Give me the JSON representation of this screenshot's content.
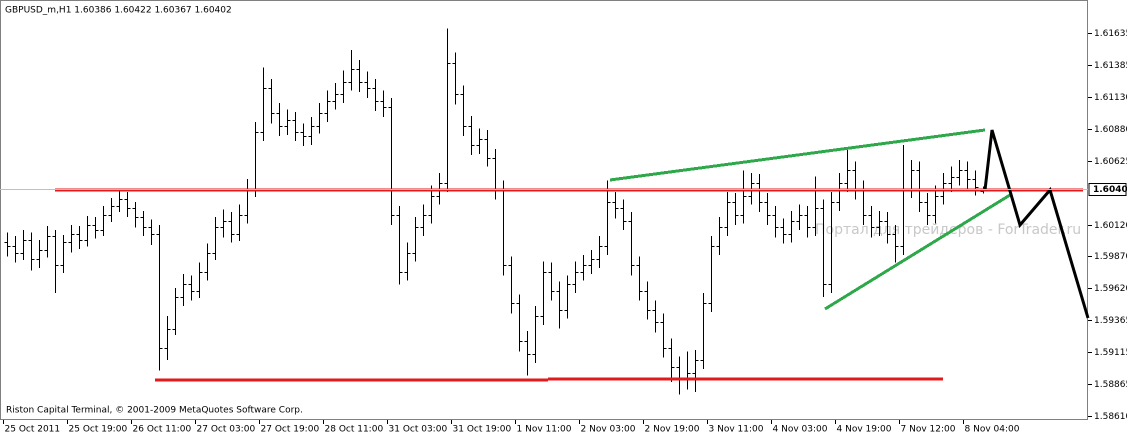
{
  "chart_data": {
    "type": "ohlc",
    "title": "GBPUSD_m,H1  1.60386 1.60422 1.60367 1.60402",
    "footer": "Riston Capital Terminal, © 2001-2009 MetaQuotes Software Corp.",
    "watermark": "Портал для трейдеров - ForTrader.ru",
    "color": "#000000",
    "ylim": [
      1.58578,
      1.61895
    ],
    "yticks": [
      1.61635,
      1.61385,
      {
        "value": 1.6113,
        "label": "1.61130"
      },
      {
        "value": 1.6088,
        "label": "1.60880"
      },
      1.60625,
      {
        "value": 1.6012,
        "label": "1.60120"
      },
      {
        "value": 1.5987,
        "label": "1.59870"
      },
      {
        "value": 1.5962,
        "label": "1.59620"
      },
      1.59365,
      1.59115,
      1.58865,
      {
        "value": 1.5861,
        "label": "1.58610"
      }
    ],
    "last_price": 1.60402,
    "categories": [
      "25 Oct 2011",
      null,
      null,
      null,
      null,
      null,
      null,
      null,
      "25 Oct 19:00",
      null,
      null,
      null,
      null,
      null,
      null,
      null,
      "26 Oct 11:00",
      null,
      null,
      null,
      null,
      null,
      null,
      null,
      "27 Oct 03:00",
      null,
      null,
      null,
      null,
      null,
      null,
      null,
      "27 Oct 19:00",
      null,
      null,
      null,
      null,
      null,
      null,
      null,
      "28 Oct 11:00",
      null,
      null,
      null,
      null,
      null,
      null,
      null,
      "31 Oct 03:00",
      null,
      null,
      null,
      null,
      null,
      null,
      null,
      "31 Oct 19:00",
      null,
      null,
      null,
      null,
      null,
      null,
      null,
      "1 Nov 11:00",
      null,
      null,
      null,
      null,
      null,
      null,
      null,
      "2 Nov 03:00",
      null,
      null,
      null,
      null,
      null,
      null,
      null,
      "2 Nov 19:00",
      null,
      null,
      null,
      null,
      null,
      null,
      null,
      "3 Nov 11:00",
      null,
      null,
      null,
      null,
      null,
      null,
      null,
      "4 Nov 03:00",
      null,
      null,
      null,
      null,
      null,
      null,
      null,
      "4 Nov 19:00",
      null,
      null,
      null,
      null,
      null,
      null,
      null,
      "7 Nov 12:00",
      null,
      null,
      null,
      null,
      null,
      null,
      null,
      "8 Nov 04:00",
      null,
      null
    ],
    "open": [
      1.5998,
      1.5995,
      1.599,
      1.6,
      1.5985,
      1.5992,
      1.6003,
      1.598,
      1.5998,
      1.6005,
      1.6,
      1.6012,
      1.6008,
      1.602,
      1.6027,
      1.6032,
      1.6025,
      1.6018,
      1.601,
      1.6005,
      1.5915,
      1.593,
      1.5955,
      1.5965,
      1.596,
      1.5975,
      1.599,
      1.601,
      1.6015,
      1.6005,
      1.602,
      1.604,
      1.6085,
      1.612,
      1.61,
      1.609,
      1.6095,
      1.6085,
      1.6082,
      1.609,
      1.61,
      1.611,
      1.6115,
      1.6125,
      1.6135,
      1.6125,
      1.612,
      1.611,
      1.6105,
      1.602,
      1.5975,
      1.599,
      1.601,
      1.602,
      1.6035,
      1.6045,
      1.614,
      1.6115,
      1.609,
      1.6075,
      1.608,
      1.6065,
      1.604,
      1.598,
      1.595,
      1.592,
      1.591,
      1.594,
      1.5975,
      1.596,
      1.5945,
      1.5965,
      1.5975,
      1.598,
      1.5985,
      1.5995,
      1.603,
      1.6025,
      1.6015,
      1.598,
      1.596,
      1.5945,
      1.5935,
      1.5915,
      1.59,
      1.589,
      1.5895,
      1.5905,
      1.595,
      1.5995,
      1.601,
      1.603,
      1.602,
      1.6035,
      1.6045,
      1.603,
      1.602,
      1.601,
      1.6005,
      1.6015,
      1.602,
      1.601,
      1.6025,
      1.5965,
      1.603,
      1.6045,
      1.6055,
      1.604,
      1.602,
      1.601,
      1.6015,
      1.6005,
      1.5995,
      1.604,
      1.6055,
      1.603,
      1.602,
      1.6035,
      1.6045,
      1.605,
      1.6055,
      1.6048,
      1.60386
    ],
    "high": [
      1.6006,
      1.6003,
      1.6008,
      1.6006,
      1.6,
      1.6011,
      1.6008,
      1.6004,
      1.6012,
      1.6011,
      1.6019,
      1.6018,
      1.6027,
      1.6033,
      1.604,
      1.6038,
      1.603,
      1.6023,
      1.6016,
      1.6012,
      1.594,
      1.5962,
      1.5973,
      1.5972,
      1.5982,
      1.5997,
      1.6018,
      1.6024,
      1.6022,
      1.6028,
      1.6048,
      1.6093,
      1.6136,
      1.6127,
      1.6108,
      1.6103,
      1.6101,
      1.6092,
      1.6097,
      1.6108,
      1.6118,
      1.6124,
      1.6134,
      1.615,
      1.6142,
      1.6133,
      1.6127,
      1.6118,
      1.6112,
      1.6027,
      1.5998,
      1.6018,
      1.6028,
      1.6043,
      1.6053,
      1.6167,
      1.6148,
      1.6122,
      1.6098,
      1.6088,
      1.6087,
      1.6072,
      1.6047,
      1.5987,
      1.5957,
      1.5928,
      1.5948,
      1.5983,
      1.5982,
      1.5967,
      1.5972,
      1.5983,
      1.5988,
      1.5992,
      1.6003,
      1.6047,
      1.6038,
      1.6032,
      1.6022,
      1.5987,
      1.5967,
      1.5952,
      1.5942,
      1.5922,
      1.5908,
      1.5912,
      1.5913,
      1.5958,
      1.6003,
      1.6018,
      1.6038,
      1.6037,
      1.6055,
      1.6053,
      1.6052,
      1.6037,
      1.6027,
      1.6017,
      1.6023,
      1.6028,
      1.6027,
      1.605,
      1.6032,
      1.6038,
      1.6053,
      1.6072,
      1.6062,
      1.6047,
      1.6027,
      1.6023,
      1.6022,
      1.6012,
      1.6075,
      1.6063,
      1.6062,
      1.6037,
      1.6043,
      1.6053,
      1.6058,
      1.6063,
      1.6062,
      1.6055,
      1.60422
    ],
    "low": [
      1.5987,
      1.5982,
      1.5984,
      1.5976,
      1.5978,
      1.5986,
      1.5958,
      1.5974,
      1.599,
      1.5993,
      1.5995,
      1.6001,
      1.6003,
      1.6014,
      1.6022,
      1.6018,
      1.601,
      1.6003,
      1.5996,
      1.5897,
      1.5905,
      1.5925,
      1.5948,
      1.5952,
      1.5954,
      1.5968,
      1.5984,
      1.6002,
      1.5998,
      1.5999,
      1.6013,
      1.6034,
      1.6078,
      1.6092,
      1.6082,
      1.6083,
      1.6078,
      1.6074,
      1.6075,
      1.6084,
      1.6093,
      1.6103,
      1.6108,
      1.6118,
      1.6117,
      1.6112,
      1.6102,
      1.6097,
      1.6012,
      1.5965,
      1.5968,
      1.5983,
      1.6003,
      1.6013,
      1.6028,
      1.6038,
      1.6107,
      1.6082,
      1.6067,
      1.6068,
      1.6058,
      1.6032,
      1.5972,
      1.5942,
      1.5912,
      1.5893,
      1.5903,
      1.5933,
      1.5952,
      1.593,
      1.5938,
      1.5958,
      1.5968,
      1.5973,
      1.5978,
      1.5988,
      1.6017,
      1.6008,
      1.5972,
      1.5952,
      1.5937,
      1.5927,
      1.5907,
      1.5888,
      1.5878,
      1.5882,
      1.588,
      1.5898,
      1.5943,
      1.5988,
      1.6003,
      1.6012,
      1.6013,
      1.6028,
      1.6022,
      1.6012,
      1.6002,
      1.5997,
      1.5998,
      1.6008,
      1.6002,
      1.6003,
      1.5955,
      1.5958,
      1.6023,
      1.6038,
      1.6032,
      1.6012,
      1.6002,
      1.6003,
      1.5997,
      1.5982,
      1.5988,
      1.6033,
      1.6022,
      1.6012,
      1.6013,
      1.6028,
      1.6038,
      1.6043,
      1.604,
      1.6035,
      1.60367
    ],
    "close": [
      1.5995,
      1.599,
      1.6,
      1.5985,
      1.5992,
      1.6003,
      1.598,
      1.5998,
      1.6005,
      1.6,
      1.6012,
      1.6008,
      1.602,
      1.6027,
      1.6032,
      1.6025,
      1.6018,
      1.601,
      1.6005,
      1.5915,
      1.593,
      1.5955,
      1.5965,
      1.596,
      1.5975,
      1.599,
      1.601,
      1.6015,
      1.6005,
      1.602,
      1.604,
      1.6085,
      1.612,
      1.61,
      1.609,
      1.6095,
      1.6085,
      1.6082,
      1.609,
      1.61,
      1.611,
      1.6115,
      1.6125,
      1.6135,
      1.6125,
      1.612,
      1.611,
      1.6105,
      1.602,
      1.5975,
      1.599,
      1.601,
      1.602,
      1.6035,
      1.6045,
      1.614,
      1.6115,
      1.609,
      1.6075,
      1.608,
      1.6065,
      1.604,
      1.598,
      1.595,
      1.592,
      1.591,
      1.594,
      1.5975,
      1.596,
      1.5945,
      1.5965,
      1.5975,
      1.598,
      1.5985,
      1.5995,
      1.603,
      1.6025,
      1.6015,
      1.598,
      1.596,
      1.5945,
      1.5935,
      1.5915,
      1.59,
      1.589,
      1.5895,
      1.5905,
      1.595,
      1.5995,
      1.601,
      1.603,
      1.602,
      1.6035,
      1.6045,
      1.603,
      1.602,
      1.601,
      1.6005,
      1.6015,
      1.602,
      1.601,
      1.6025,
      1.5965,
      1.603,
      1.6045,
      1.6055,
      1.604,
      1.602,
      1.601,
      1.6015,
      1.6005,
      1.5995,
      1.604,
      1.6055,
      1.603,
      1.602,
      1.6035,
      1.6045,
      1.605,
      1.6055,
      1.6048,
      1.6042,
      1.60402
    ]
  }
}
